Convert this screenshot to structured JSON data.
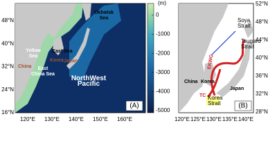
{
  "panel_a": {
    "label": "(A)",
    "lat_ticks": [
      "48°N",
      "40°N",
      "32°N",
      "24°N",
      "16°N"
    ],
    "lon_ticks": [
      "120°E",
      "130°E",
      "140°E",
      "150°E",
      "160°E"
    ],
    "colorbar": {
      "unit": "(m)",
      "ticks": [
        0,
        -1000,
        -2000,
        -3000,
        -4000,
        -5000
      ]
    },
    "places": {
      "okhotsk": "Okhotsk\nSea",
      "yellow": "Yellow\nSea",
      "east": "East Sea",
      "korea": "Korea",
      "japan": "Japan",
      "china": "China",
      "ecs": "East\nChina Sea",
      "nwp": "NorthWest\nPacific"
    }
  },
  "panel_b": {
    "label": "(B)",
    "lat_ticks": [
      "52°N",
      "48°N",
      "44°N",
      "40°N",
      "36°N",
      "32°N",
      "28°N"
    ],
    "lon_ticks": [
      "120°E",
      "125°E",
      "130°E",
      "135°E",
      "140°E"
    ],
    "places": {
      "soya": "Soya\nStrait",
      "tsugaru": "Tsugaru\nStrait",
      "china": "China",
      "korea": "Korea",
      "japan": "Japan",
      "korea_strait": "Korea\nStrait",
      "ekwc": "EKWC",
      "tc": "TC"
    }
  }
}
